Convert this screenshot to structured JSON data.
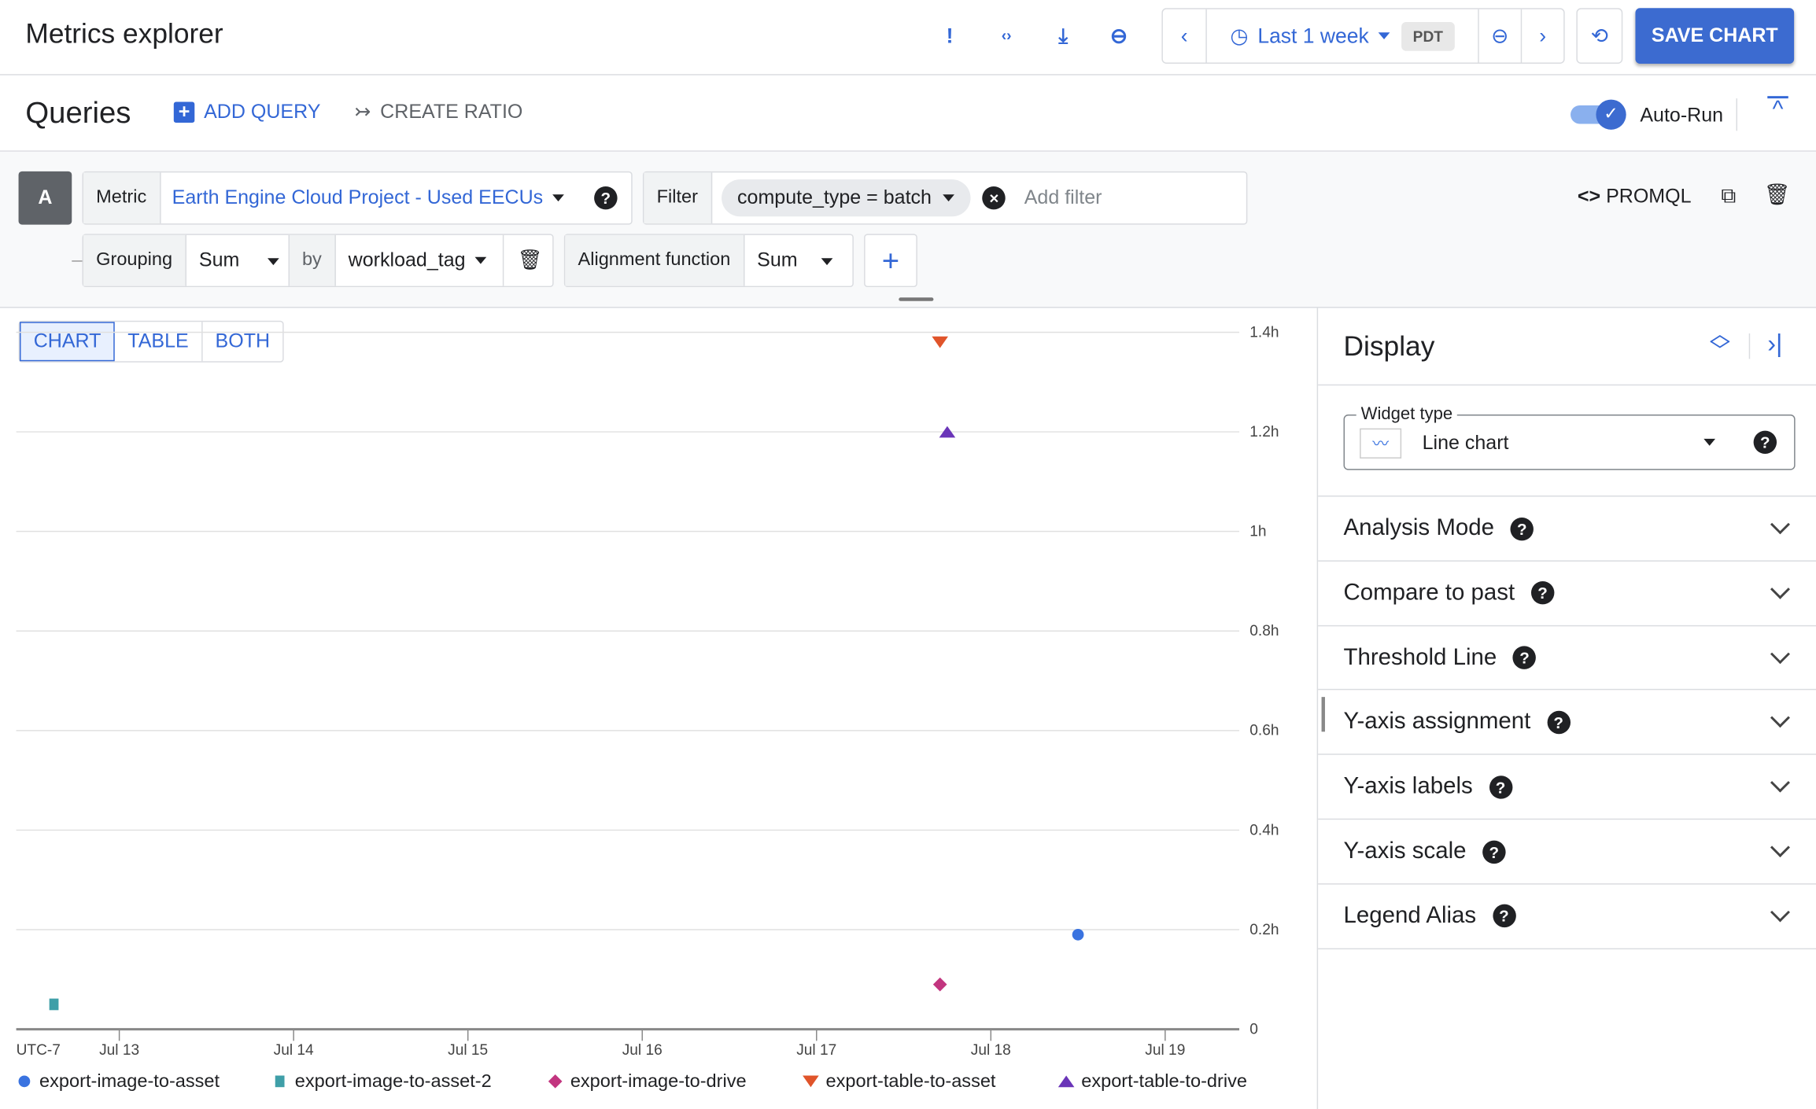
{
  "header": {
    "title": "Metrics explorer",
    "time_range": "Last 1 week",
    "timezone": "PDT",
    "save_label": "SAVE CHART",
    "icons": [
      "feedback-icon",
      "embed-code-icon",
      "download-icon",
      "link-icon",
      "prev-icon",
      "clock-icon",
      "zoom-out-icon",
      "next-icon",
      "sync-off-icon"
    ]
  },
  "queries": {
    "title": "Queries",
    "add_query": "ADD QUERY",
    "create_ratio": "CREATE RATIO",
    "auto_run": "Auto-Run",
    "auto_run_on": true,
    "query": {
      "letter": "A",
      "metric_label": "Metric",
      "metric_value": "Earth Engine Cloud Project - Used EECUs",
      "filter_label": "Filter",
      "filter_chip": "compute_type = batch",
      "filter_placeholder": "Add filter",
      "promql": "PROMQL",
      "grouping_label": "Grouping",
      "grouping_value": "Sum",
      "by_label": "by",
      "by_value": "workload_tag",
      "alignment_label": "Alignment function",
      "alignment_value": "Sum"
    }
  },
  "view_tabs": [
    "CHART",
    "TABLE",
    "BOTH"
  ],
  "display": {
    "title": "Display",
    "widget_type_label": "Widget type",
    "widget_type_value": "Line chart",
    "sections": [
      "Analysis Mode",
      "Compare to past",
      "Threshold Line",
      "Y-axis assignment",
      "Y-axis labels",
      "Y-axis scale",
      "Legend Alias"
    ]
  },
  "chart_data": {
    "type": "scatter",
    "timezone_label": "UTC-7",
    "x_ticks": [
      "Jul 13",
      "Jul 14",
      "Jul 15",
      "Jul 16",
      "Jul 17",
      "Jul 18",
      "Jul 19"
    ],
    "y_ticks": [
      "0",
      "0.2h",
      "0.4h",
      "0.6h",
      "0.8h",
      "1h",
      "1.2h",
      "1.4h"
    ],
    "ylim": [
      0,
      1.4
    ],
    "grid": true,
    "legend": "bottom",
    "series": [
      {
        "name": "export-image-to-asset",
        "color": "#3a73e0",
        "marker": "circle",
        "points": [
          {
            "x": "Jul 18 12:00",
            "y": 0.19
          }
        ]
      },
      {
        "name": "export-image-to-asset-2",
        "color": "#3f9fa8",
        "marker": "square",
        "points": [
          {
            "x": "Jul 12 15:00",
            "y": 0.05
          }
        ]
      },
      {
        "name": "export-image-to-drive",
        "color": "#c2357f",
        "marker": "diamond",
        "points": [
          {
            "x": "Jul 17 17:00",
            "y": 0.09
          }
        ]
      },
      {
        "name": "export-table-to-asset",
        "color": "#e0542a",
        "marker": "triangle-down",
        "points": [
          {
            "x": "Jul 17 17:00",
            "y": 1.38
          }
        ]
      },
      {
        "name": "export-table-to-drive",
        "color": "#6a35b8",
        "marker": "triangle-up",
        "points": [
          {
            "x": "Jul 17 18:00",
            "y": 1.2
          }
        ]
      }
    ]
  }
}
